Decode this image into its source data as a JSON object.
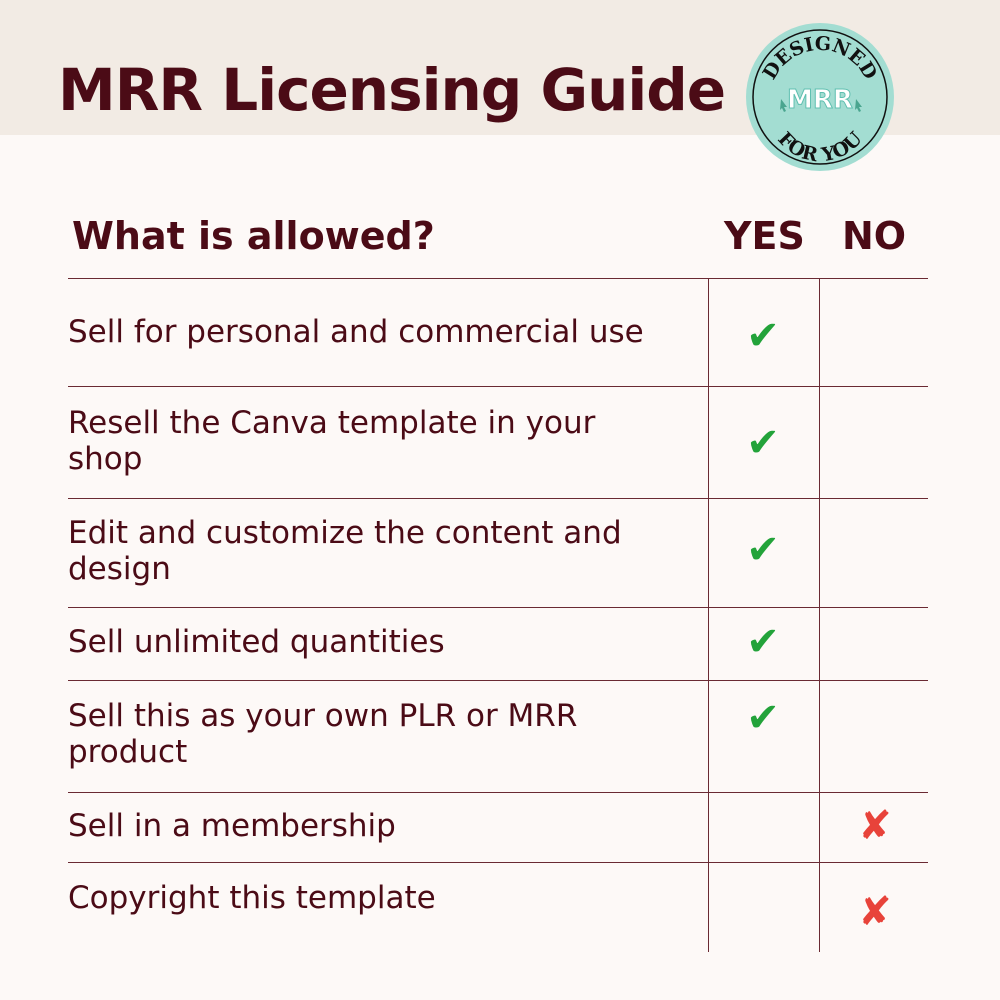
{
  "header": {
    "title": "MRR Licensing Guide"
  },
  "badge": {
    "top_text": "DESIGNED",
    "center_text": "MRR",
    "bottom_text": "FOR YOU",
    "color": "#a3ddd2"
  },
  "table": {
    "question": "What is allowed?",
    "yes_label": "YES",
    "no_label": "NO",
    "rows": [
      {
        "text": "Sell for personal and commercial use",
        "allowed": true
      },
      {
        "text": "Resell the Canva template in your shop",
        "allowed": true
      },
      {
        "text": "Edit and customize the content and design",
        "allowed": true
      },
      {
        "text": "Sell unlimited quantities",
        "allowed": true
      },
      {
        "text": "Sell this as your own PLR or MRR product",
        "allowed": true
      },
      {
        "text": "Sell in a membership",
        "allowed": false
      },
      {
        "text": "Copyright this template",
        "allowed": false
      }
    ],
    "check_icon": "check-icon",
    "cross_icon": "cross-icon",
    "check_color": "#23a33a",
    "cross_color": "#e8433a"
  }
}
